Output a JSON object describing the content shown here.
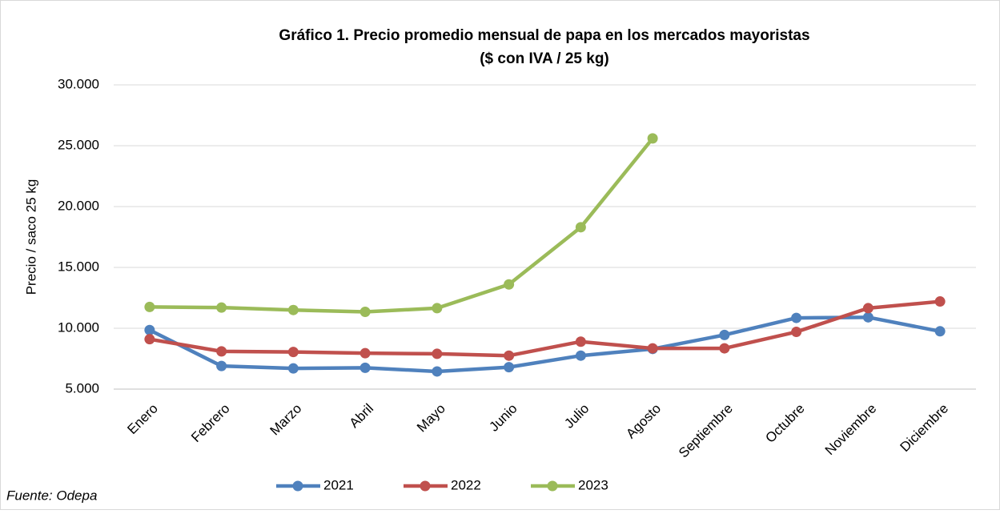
{
  "chart_data": {
    "type": "line",
    "title": "Gráfico 1. Precio promedio mensual de papa en los mercados mayoristas",
    "subtitle": "($ con IVA / 25 kg)",
    "y_label": "Precio / saco 25 kg",
    "source": "Fuente: Odepa",
    "categories": [
      "Enero",
      "Febrero",
      "Marzo",
      "Abril",
      "Mayo",
      "Junio",
      "Julio",
      "Agosto",
      "Septiembre",
      "Octubre",
      "Noviembre",
      "Diciembre"
    ],
    "series": [
      {
        "name": "2021",
        "color": "#4f81bd",
        "values": [
          9850,
          6900,
          6700,
          6750,
          6450,
          6800,
          7750,
          8300,
          9450,
          10850,
          10900,
          9750
        ]
      },
      {
        "name": "2022",
        "color": "#c0504d",
        "values": [
          9100,
          8100,
          8050,
          7950,
          7900,
          7750,
          8900,
          8350,
          8350,
          9700,
          11650,
          12200
        ]
      },
      {
        "name": "2023",
        "color": "#9bbb59",
        "values": [
          11750,
          11700,
          11500,
          11350,
          11650,
          13600,
          18300,
          25600,
          null,
          null,
          null,
          null
        ]
      }
    ],
    "ylim": [
      5000,
      30000
    ],
    "yticks": [
      {
        "value": 5000,
        "label": "5.000"
      },
      {
        "value": 10000,
        "label": "10.000"
      },
      {
        "value": 15000,
        "label": "15.000"
      },
      {
        "value": 20000,
        "label": "20.000"
      },
      {
        "value": 25000,
        "label": "25.000"
      },
      {
        "value": 30000,
        "label": "30.000"
      }
    ],
    "grid": true,
    "legend": "bottom"
  }
}
